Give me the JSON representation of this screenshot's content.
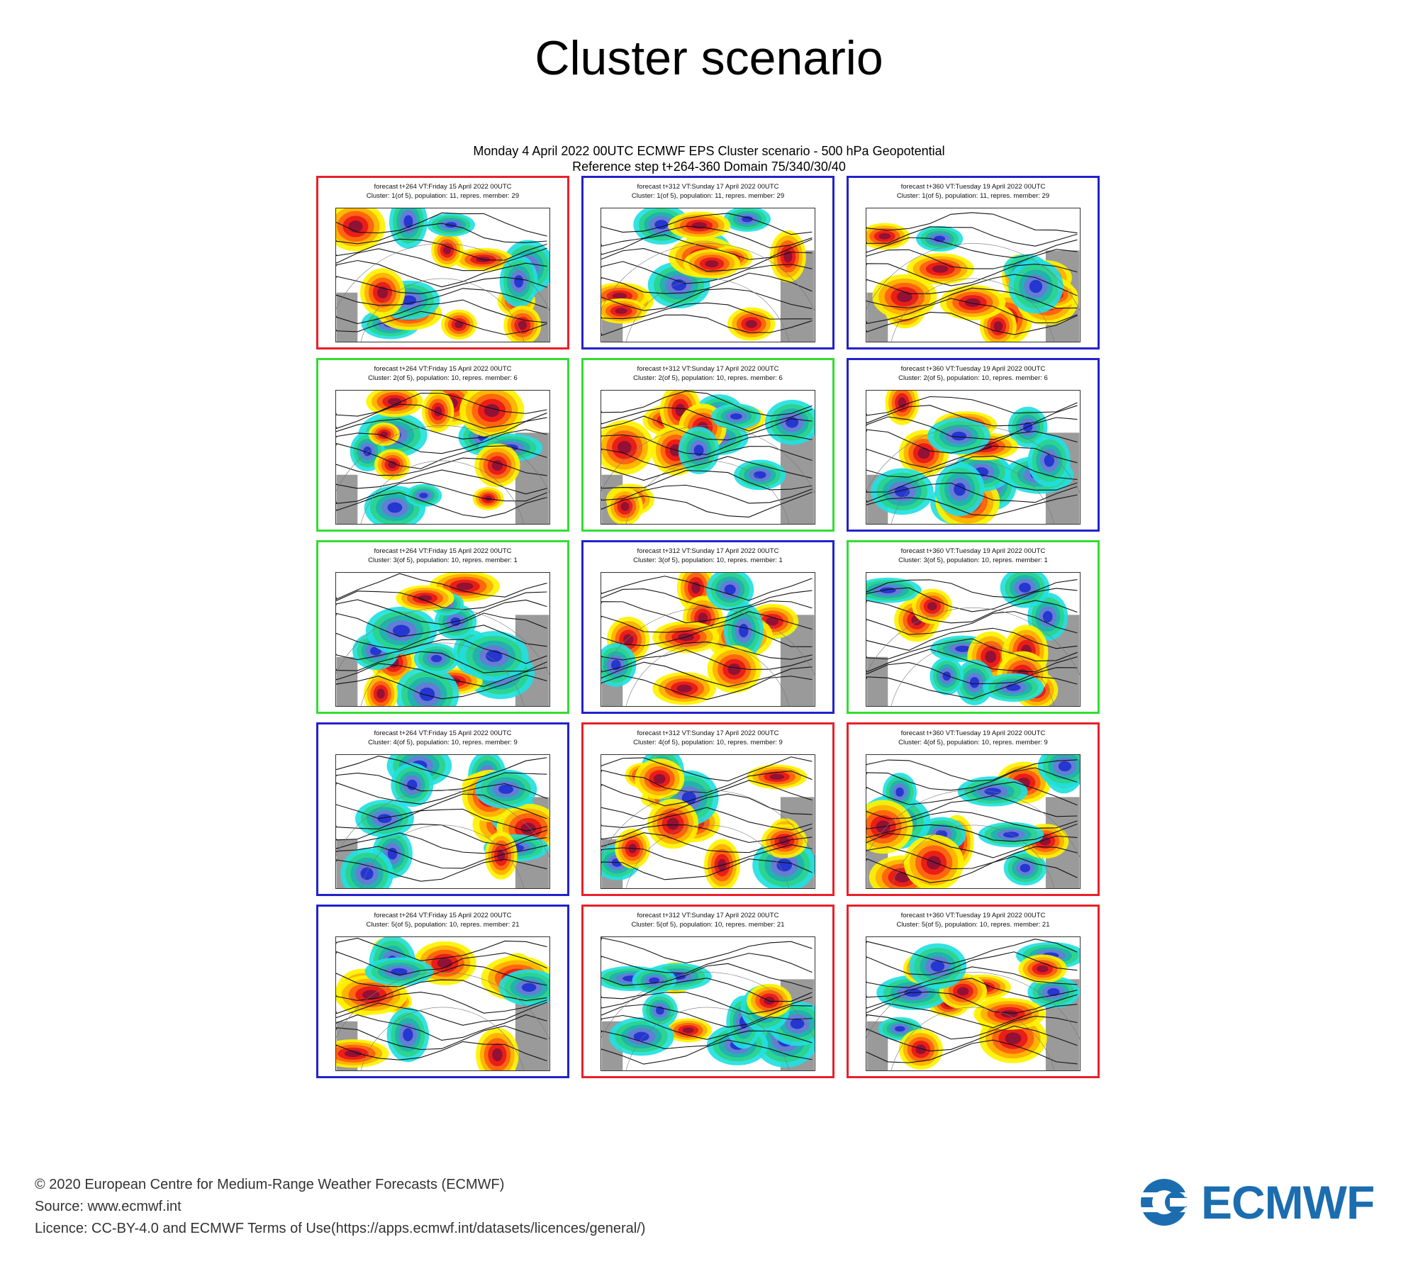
{
  "page_title": "Cluster scenario",
  "figure": {
    "title_line1": "Monday 4 April 2022 00UTC ECMWF EPS Cluster scenario - 500 hPa Geopotential",
    "title_line2": "Reference step t+264-360 Domain 75/340/30/40"
  },
  "colors": {
    "red": "#e8202a",
    "green": "#33dd33",
    "blue": "#2222cc"
  },
  "panels": [
    {
      "line1": "forecast t+264 VT:Friday 15 April 2022 00UTC",
      "line2": "Cluster: 1(of 5), population: 11, repres. member: 29",
      "border": "red"
    },
    {
      "line1": "forecast t+312 VT:Sunday 17 April 2022 00UTC",
      "line2": "Cluster: 1(of 5), population: 11, repres. member: 29",
      "border": "blue"
    },
    {
      "line1": "forecast t+360 VT:Tuesday 19 April 2022 00UTC",
      "line2": "Cluster: 1(of 5), population: 11, repres. member: 29",
      "border": "blue"
    },
    {
      "line1": "forecast t+264 VT:Friday 15 April 2022 00UTC",
      "line2": "Cluster: 2(of 5), population: 10, repres. member: 6",
      "border": "green"
    },
    {
      "line1": "forecast t+312 VT:Sunday 17 April 2022 00UTC",
      "line2": "Cluster: 2(of 5), population: 10, repres. member: 6",
      "border": "green"
    },
    {
      "line1": "forecast t+360 VT:Tuesday 19 April 2022 00UTC",
      "line2": "Cluster: 2(of 5), population: 10, repres. member: 6",
      "border": "blue"
    },
    {
      "line1": "forecast t+264 VT:Friday 15 April 2022 00UTC",
      "line2": "Cluster: 3(of 5), population: 10, repres. member: 1",
      "border": "green"
    },
    {
      "line1": "forecast t+312 VT:Sunday 17 April 2022 00UTC",
      "line2": "Cluster: 3(of 5), population: 10, repres. member: 1",
      "border": "blue"
    },
    {
      "line1": "forecast t+360 VT:Tuesday 19 April 2022 00UTC",
      "line2": "Cluster: 3(of 5), population: 10, repres. member: 1",
      "border": "green"
    },
    {
      "line1": "forecast t+264 VT:Friday 15 April 2022 00UTC",
      "line2": "Cluster: 4(of 5), population: 10, repres. member: 9",
      "border": "blue"
    },
    {
      "line1": "forecast t+312 VT:Sunday 17 April 2022 00UTC",
      "line2": "Cluster: 4(of 5), population: 10, repres. member: 9",
      "border": "red"
    },
    {
      "line1": "forecast t+360 VT:Tuesday 19 April 2022 00UTC",
      "line2": "Cluster: 4(of 5), population: 10, repres. member: 9",
      "border": "red"
    },
    {
      "line1": "forecast t+264 VT:Friday 15 April 2022 00UTC",
      "line2": "Cluster: 5(of 5), population: 10, repres. member: 21",
      "border": "blue"
    },
    {
      "line1": "forecast t+312 VT:Sunday 17 April 2022 00UTC",
      "line2": "Cluster: 5(of 5), population: 10, repres. member: 21",
      "border": "red"
    },
    {
      "line1": "forecast t+360 VT:Tuesday 19 April 2022 00UTC",
      "line2": "Cluster: 5(of 5), population: 10, repres. member: 21",
      "border": "red"
    }
  ],
  "footer": {
    "copyright": "© 2020 European Centre for Medium-Range Weather Forecasts (ECMWF)",
    "source": "Source: www.ecmwf.int",
    "licence": "Licence: CC-BY-4.0 and ECMWF Terms of Use(https://apps.ecmwf.int/datasets/licences/general/)"
  },
  "logo": {
    "text": "ECMWF",
    "color": "#1b6db0"
  }
}
